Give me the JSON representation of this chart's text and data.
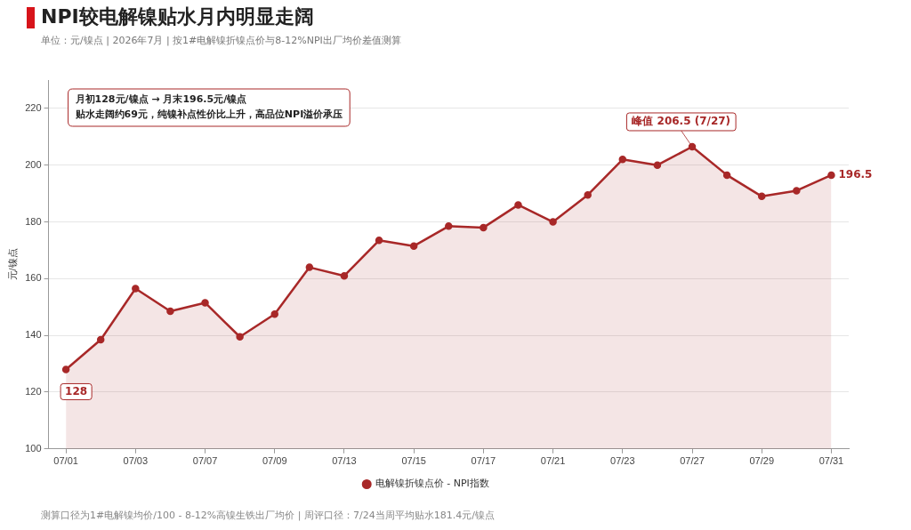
{
  "chart_data": {
    "type": "area",
    "title": "NPI较电解镍贴水月内明显走阔",
    "subtitle": "单位：元/镍点  |  2026年7月  |  按1#电解镍折镍点价与8-12%NPI出厂均价差值测算",
    "ylabel": "元/镍点",
    "categories": [
      "07/01",
      null,
      "07/03",
      null,
      "07/07",
      null,
      "07/09",
      null,
      "07/13",
      null,
      "07/15",
      null,
      "07/17",
      null,
      "07/21",
      null,
      "07/23",
      null,
      "07/27",
      null,
      "07/29",
      null,
      "07/31"
    ],
    "series": [
      {
        "name": "电解镍折镍点价 - NPI指数",
        "color": "#a82828",
        "values": [
          128,
          138.5,
          156.5,
          148.5,
          151.5,
          139.5,
          147.5,
          164,
          161,
          173.5,
          171.5,
          178.5,
          178,
          186,
          180,
          189.5,
          202,
          200,
          206.5,
          196.5,
          189,
          191,
          196.5
        ],
        "value_labels": [
          "128",
          null,
          null,
          null,
          null,
          null,
          null,
          null,
          null,
          null,
          null,
          null,
          null,
          null,
          null,
          null,
          null,
          null,
          null,
          null,
          null,
          null,
          "196.5"
        ]
      }
    ],
    "ylim": [
      100,
      230
    ],
    "yticks": [
      100,
      120,
      140,
      160,
      180,
      200,
      220
    ],
    "grid": "y",
    "legend": "bottom",
    "marker": "circle",
    "line_style": "solid",
    "annotations": [
      "月初128元/镍点 → 月末196.5元/镍点",
      "贴水走阔约69元，纯镍补点性价比上升，高品位NPI溢价承压",
      {
        "text": "峰值 206.5 (7/27)",
        "x": "07/27",
        "y": 206.5
      },
      "测算口径为1#电解镍均价/100 - 8-12%高镍生铁出厂均价  |  周评口径：7/24当周平均贴水181.4元/镍点"
    ]
  }
}
